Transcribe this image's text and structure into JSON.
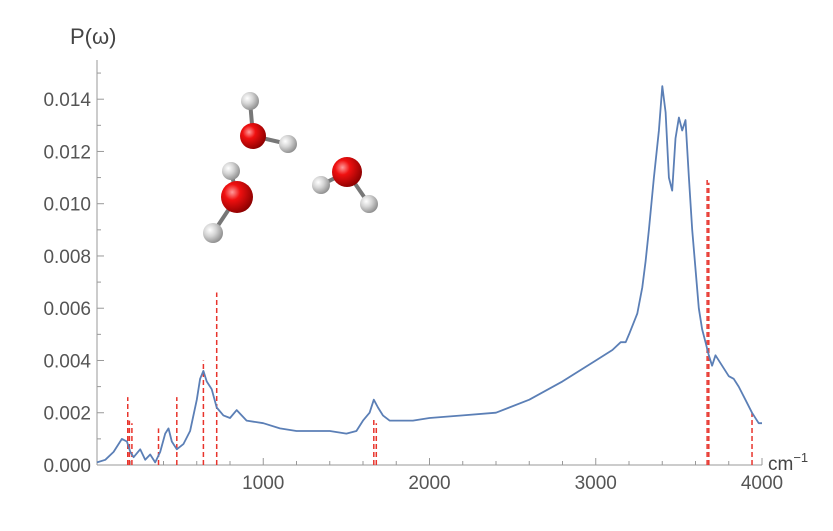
{
  "chart_data": {
    "type": "line",
    "title": "",
    "ylabel": "P(ω)",
    "xlabel_unit": "cm",
    "xlabel_exp": "−1",
    "xlim": [
      0,
      4000
    ],
    "ylim": [
      0,
      0.0155
    ],
    "x_ticks": [
      1000,
      2000,
      3000,
      4000
    ],
    "x_tick_labels": [
      "1000",
      "2000",
      "3000",
      "4000"
    ],
    "y_ticks": [
      0.0,
      0.002,
      0.004,
      0.006,
      0.008,
      0.01,
      0.012,
      0.014
    ],
    "y_tick_labels": [
      "0.000",
      "0.002",
      "0.004",
      "0.006",
      "0.008",
      "0.010",
      "0.012",
      "0.014"
    ],
    "grid": false,
    "series": [
      {
        "color": "#5b7fb6",
        "x": [
          0,
          50,
          100,
          150,
          180,
          200,
          220,
          260,
          290,
          320,
          350,
          380,
          410,
          430,
          450,
          480,
          520,
          560,
          600,
          620,
          640,
          660,
          690,
          720,
          760,
          800,
          840,
          900,
          1000,
          1100,
          1200,
          1300,
          1400,
          1500,
          1560,
          1600,
          1640,
          1665,
          1690,
          1720,
          1760,
          1800,
          1900,
          2000,
          2200,
          2400,
          2600,
          2800,
          3000,
          3100,
          3150,
          3180,
          3200,
          3250,
          3280,
          3300,
          3320,
          3350,
          3380,
          3400,
          3420,
          3440,
          3460,
          3480,
          3500,
          3520,
          3540,
          3560,
          3580,
          3600,
          3620,
          3640,
          3660,
          3680,
          3700,
          3720,
          3760,
          3800,
          3830,
          3860,
          3900,
          3940,
          3980,
          4000
        ],
        "y": [
          0.0001,
          0.0002,
          0.0005,
          0.001,
          0.0009,
          0.0005,
          0.0003,
          0.0006,
          0.0002,
          0.0004,
          0.0001,
          0.0005,
          0.0012,
          0.0014,
          0.0009,
          0.0006,
          0.0008,
          0.0013,
          0.0025,
          0.0033,
          0.0036,
          0.0032,
          0.0029,
          0.0022,
          0.0019,
          0.0018,
          0.0021,
          0.0017,
          0.0016,
          0.0014,
          0.0013,
          0.0013,
          0.0013,
          0.0012,
          0.0013,
          0.0017,
          0.002,
          0.0025,
          0.0022,
          0.0019,
          0.0017,
          0.0017,
          0.0017,
          0.0018,
          0.0019,
          0.002,
          0.0025,
          0.0032,
          0.004,
          0.0044,
          0.0047,
          0.0047,
          0.005,
          0.0058,
          0.0068,
          0.0078,
          0.009,
          0.011,
          0.0128,
          0.0145,
          0.0135,
          0.011,
          0.0105,
          0.0125,
          0.0133,
          0.0128,
          0.0132,
          0.011,
          0.009,
          0.0075,
          0.006,
          0.0052,
          0.0047,
          0.0042,
          0.0038,
          0.0042,
          0.0038,
          0.0034,
          0.0033,
          0.003,
          0.0025,
          0.002,
          0.0016,
          0.0016
        ]
      }
    ],
    "stick_lines": {
      "color": "#e8342c",
      "items": [
        {
          "x": 185,
          "y": 0.0026
        },
        {
          "x": 195,
          "y": 0.0017
        },
        {
          "x": 210,
          "y": 0.0016
        },
        {
          "x": 370,
          "y": 0.0014
        },
        {
          "x": 480,
          "y": 0.0026
        },
        {
          "x": 640,
          "y": 0.004
        },
        {
          "x": 720,
          "y": 0.0066
        },
        {
          "x": 1665,
          "y": 0.0018
        },
        {
          "x": 1680,
          "y": 0.0016
        },
        {
          "x": 3670,
          "y": 0.011
        },
        {
          "x": 3680,
          "y": 0.0108
        },
        {
          "x": 3940,
          "y": 0.002
        }
      ]
    }
  },
  "molecule_colors": {
    "oxygen": "#e00000",
    "hydrogen": "#d8d8d8",
    "bond": "#777777"
  }
}
